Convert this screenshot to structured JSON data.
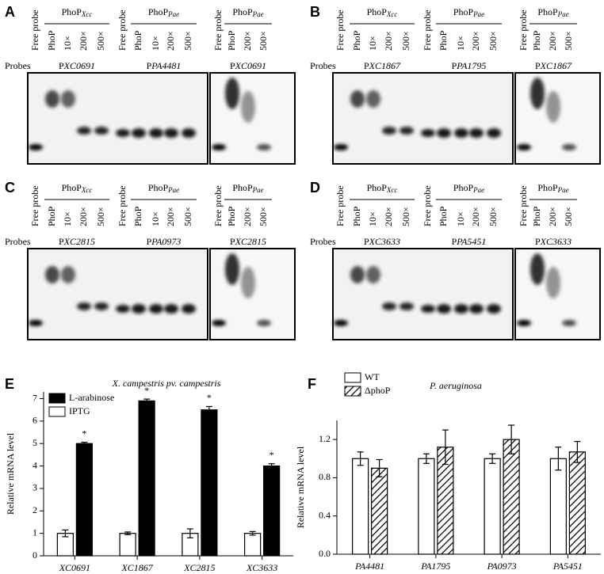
{
  "gel_panels": [
    {
      "label": "A",
      "probes_label": "Probes",
      "groups": [
        {
          "protein": "PhoP",
          "subscript": "Xcc",
          "lanes": [
            "Free probe",
            "PhoP",
            "10×",
            "200×",
            "500×"
          ],
          "probe_prefix": "P",
          "probe": "XC0691"
        },
        {
          "protein": "PhoP",
          "subscript": "Pae",
          "lanes": [
            "Free probe",
            "PhoP",
            "10×",
            "200×",
            "500×"
          ],
          "probe_prefix": "P",
          "probe": "PA4481"
        },
        {
          "protein": "PhoP",
          "subscript": "Pae",
          "lanes": [
            "Free probe",
            "PhoP",
            "200×",
            "500×"
          ],
          "probe_prefix": "P",
          "probe": "XC0691"
        }
      ]
    },
    {
      "label": "B",
      "probes_label": "Probes",
      "groups": [
        {
          "protein": "PhoP",
          "subscript": "Xcc",
          "lanes": [
            "Free probe",
            "PhoP",
            "10×",
            "200×",
            "500×"
          ],
          "probe_prefix": "P",
          "probe": "XC1867"
        },
        {
          "protein": "PhoP",
          "subscript": "Pae",
          "lanes": [
            "Free probe",
            "PhoP",
            "10×",
            "200×",
            "500×"
          ],
          "probe_prefix": "P",
          "probe": "PA1795"
        },
        {
          "protein": "PhoP",
          "subscript": "Pae",
          "lanes": [
            "Free probe",
            "PhoP",
            "200×",
            "500×"
          ],
          "probe_prefix": "P",
          "probe": "XC1867"
        }
      ]
    },
    {
      "label": "C",
      "probes_label": "Probes",
      "groups": [
        {
          "protein": "PhoP",
          "subscript": "Xcc",
          "lanes": [
            "Free probe",
            "PhoP",
            "10×",
            "200×",
            "500×"
          ],
          "probe_prefix": "P",
          "probe": "XC2815"
        },
        {
          "protein": "PhoP",
          "subscript": "Pae",
          "lanes": [
            "Free probe",
            "PhoP",
            "10×",
            "200×",
            "500×"
          ],
          "probe_prefix": "P",
          "probe": "PA0973"
        },
        {
          "protein": "PhoP",
          "subscript": "Pae",
          "lanes": [
            "Free probe",
            "PhoP",
            "200×",
            "500×"
          ],
          "probe_prefix": "P",
          "probe": "XC2815"
        }
      ]
    },
    {
      "label": "D",
      "probes_label": "Probes",
      "groups": [
        {
          "protein": "PhoP",
          "subscript": "Xcc",
          "lanes": [
            "Free probe",
            "PhoP",
            "10×",
            "200×",
            "500×"
          ],
          "probe_prefix": "P",
          "probe": "XC3633"
        },
        {
          "protein": "PhoP",
          "subscript": "Pae",
          "lanes": [
            "Free probe",
            "PhoP",
            "10×",
            "200×",
            "500×"
          ],
          "probe_prefix": "P",
          "probe": "PA5451"
        },
        {
          "protein": "PhoP",
          "subscript": "Pae",
          "lanes": [
            "Free probe",
            "PhoP",
            "200×",
            "500×"
          ],
          "probe_prefix": "P",
          "probe": "XC3633"
        }
      ]
    }
  ],
  "chart_data": [
    {
      "type": "bar",
      "label": "E",
      "title": "X. campestris pv. campestris",
      "ylabel": "Relative mRNA level",
      "categories": [
        "XC0691",
        "XC1867",
        "XC2815",
        "XC3633"
      ],
      "series": [
        {
          "name": "IPTG",
          "color": "#ffffff",
          "values": [
            1,
            1,
            1,
            1
          ],
          "errors": [
            0.15,
            0.06,
            0.2,
            0.08
          ]
        },
        {
          "name": "L-arabinose",
          "color": "#000000",
          "values": [
            5.0,
            6.9,
            6.5,
            4.0
          ],
          "errors": [
            0.06,
            0.08,
            0.15,
            0.1
          ]
        }
      ],
      "annotations": [
        "*",
        "*",
        "*",
        "*"
      ],
      "ylim": [
        0,
        7.3
      ],
      "yticks": [
        0,
        1,
        2,
        3,
        4,
        5,
        6,
        7
      ],
      "legend": "upper left"
    },
    {
      "type": "bar",
      "label": "F",
      "title": "P. aeruginosa",
      "ylabel": "Relative mRNA level",
      "categories": [
        "PA4481",
        "PA1795",
        "PA0973",
        "PA5451"
      ],
      "series": [
        {
          "name": "WT",
          "color": "#ffffff",
          "values": [
            1,
            1,
            1,
            1
          ],
          "errors": [
            0.07,
            0.05,
            0.05,
            0.12
          ]
        },
        {
          "name": "ΔphoP",
          "color": "#ffffff",
          "hatch": true,
          "values": [
            0.9,
            1.12,
            1.2,
            1.07
          ],
          "errors": [
            0.09,
            0.18,
            0.15,
            0.11
          ]
        }
      ],
      "ylim": [
        0,
        1.4
      ],
      "yticks": [
        {
          "value": 0,
          "label": "0.0"
        },
        0.4,
        0.8,
        1.2
      ],
      "legend": "above"
    }
  ]
}
